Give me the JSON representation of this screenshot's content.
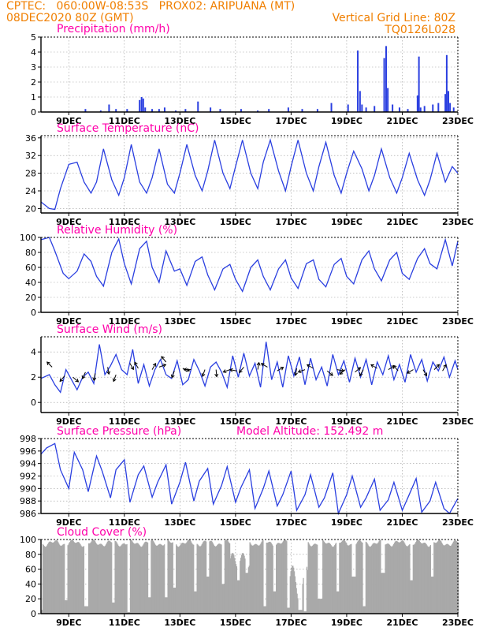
{
  "header": {
    "line1_left": "CPTEC:   060:00W-08:53S   PROX02: ARIPUANA (MT)",
    "line2_left": "08DEC2020 80Z (GMT)",
    "line2_right": "Vertical Grid Line: 80Z",
    "line3_right": "TQ0126L028"
  },
  "colors": {
    "header": "#f07f00",
    "title": "#ff00aa",
    "series": "#2a3fe0",
    "cloud": "#a9a9a9",
    "wind_arrow": "#000000"
  },
  "x_axis_ticks": [
    "9DEC",
    "11DEC",
    "13DEC",
    "15DEC",
    "17DEC",
    "19DEC",
    "21DEC",
    "23DEC"
  ],
  "chart_data": [
    {
      "type": "bar",
      "title": "Precipitation (mm/h)",
      "ylim": [
        0,
        5
      ],
      "yticks": [
        0,
        1,
        2,
        3,
        4,
        5
      ],
      "x_unit": "days since 8DEC 00Z",
      "x_range": [
        8.0,
        23.0
      ],
      "bars": [
        [
          9.6,
          0.2
        ],
        [
          10.15,
          0.1
        ],
        [
          10.45,
          0.5
        ],
        [
          10.7,
          0.2
        ],
        [
          11.1,
          0.2
        ],
        [
          11.55,
          0.8
        ],
        [
          11.62,
          1.0
        ],
        [
          11.68,
          0.9
        ],
        [
          11.75,
          0.3
        ],
        [
          12.0,
          0.2
        ],
        [
          12.25,
          0.2
        ],
        [
          12.45,
          0.3
        ],
        [
          12.85,
          0.1
        ],
        [
          13.2,
          0.2
        ],
        [
          13.65,
          0.7
        ],
        [
          14.1,
          0.3
        ],
        [
          14.45,
          0.2
        ],
        [
          15.2,
          0.2
        ],
        [
          15.8,
          0.1
        ],
        [
          16.2,
          0.2
        ],
        [
          16.9,
          0.3
        ],
        [
          17.4,
          0.2
        ],
        [
          17.95,
          0.2
        ],
        [
          18.45,
          0.6
        ],
        [
          19.05,
          0.5
        ],
        [
          19.4,
          4.1
        ],
        [
          19.48,
          1.4
        ],
        [
          19.55,
          0.5
        ],
        [
          19.7,
          0.3
        ],
        [
          20.0,
          0.4
        ],
        [
          20.35,
          3.6
        ],
        [
          20.42,
          4.4
        ],
        [
          20.48,
          1.6
        ],
        [
          20.65,
          0.5
        ],
        [
          20.9,
          0.3
        ],
        [
          21.2,
          0.2
        ],
        [
          21.55,
          1.1
        ],
        [
          21.6,
          3.7
        ],
        [
          21.66,
          0.3
        ],
        [
          21.8,
          0.4
        ],
        [
          22.1,
          0.5
        ],
        [
          22.3,
          0.6
        ],
        [
          22.55,
          1.2
        ],
        [
          22.6,
          3.8
        ],
        [
          22.66,
          1.4
        ],
        [
          22.72,
          0.6
        ],
        [
          22.85,
          0.3
        ]
      ]
    },
    {
      "type": "line",
      "title": "Surface Temperature (nC)",
      "ylim": [
        19,
        36.5
      ],
      "yticks": [
        20,
        24,
        28,
        32,
        36
      ],
      "x_unit": "days since 8DEC 00Z",
      "x_range": [
        8.0,
        23.0
      ],
      "x": [
        8.0,
        8.3,
        8.5,
        8.7,
        9.0,
        9.3,
        9.55,
        9.8,
        10.0,
        10.25,
        10.55,
        10.8,
        11.0,
        11.25,
        11.55,
        11.8,
        12.0,
        12.25,
        12.55,
        12.8,
        13.0,
        13.25,
        13.55,
        13.8,
        14.0,
        14.25,
        14.55,
        14.8,
        15.0,
        15.25,
        15.55,
        15.8,
        16.0,
        16.25,
        16.55,
        16.8,
        17.0,
        17.25,
        17.55,
        17.8,
        18.0,
        18.25,
        18.55,
        18.8,
        19.0,
        19.25,
        19.55,
        19.8,
        20.0,
        20.25,
        20.55,
        20.8,
        21.0,
        21.25,
        21.55,
        21.8,
        22.0,
        22.25,
        22.55,
        22.8,
        23.0
      ],
      "y": [
        21.5,
        20.0,
        19.8,
        24.5,
        30.0,
        30.5,
        26.0,
        23.5,
        26.0,
        33.5,
        26.5,
        23.0,
        27.0,
        34.5,
        26.0,
        23.5,
        27.0,
        33.5,
        25.5,
        23.5,
        28.0,
        34.5,
        27.5,
        24.0,
        28.5,
        35.5,
        28.0,
        24.5,
        29.5,
        35.5,
        28.0,
        24.5,
        30.5,
        35.5,
        28.5,
        24.0,
        29.5,
        35.5,
        28.0,
        24.0,
        29.5,
        35.0,
        27.5,
        23.5,
        28.0,
        33.0,
        29.0,
        24.0,
        27.5,
        33.5,
        27.0,
        23.5,
        27.0,
        32.5,
        26.5,
        23.0,
        26.5,
        32.5,
        26.0,
        29.5,
        28.0
      ]
    },
    {
      "type": "line",
      "title": "Relative Humidity (%)",
      "ylim": [
        0,
        100
      ],
      "yticks": [
        0,
        20,
        40,
        60,
        80,
        100
      ],
      "x_unit": "days since 8DEC 00Z",
      "x_range": [
        8.0,
        23.0
      ],
      "x": [
        8.0,
        8.3,
        8.5,
        8.8,
        9.0,
        9.3,
        9.55,
        9.8,
        10.0,
        10.25,
        10.55,
        10.8,
        11.0,
        11.25,
        11.55,
        11.8,
        12.0,
        12.25,
        12.5,
        12.8,
        13.0,
        13.25,
        13.55,
        13.8,
        14.0,
        14.25,
        14.55,
        14.8,
        15.0,
        15.25,
        15.55,
        15.8,
        16.0,
        16.25,
        16.55,
        16.8,
        17.0,
        17.25,
        17.55,
        17.8,
        18.0,
        18.25,
        18.55,
        18.8,
        19.0,
        19.25,
        19.55,
        19.8,
        20.0,
        20.25,
        20.55,
        20.8,
        21.0,
        21.25,
        21.55,
        21.8,
        22.0,
        22.25,
        22.55,
        22.8,
        23.0
      ],
      "y": [
        97,
        100,
        82,
        52,
        45,
        55,
        78,
        68,
        48,
        35,
        80,
        98,
        65,
        38,
        85,
        95,
        60,
        40,
        82,
        55,
        58,
        36,
        68,
        74,
        50,
        30,
        58,
        64,
        44,
        28,
        60,
        70,
        48,
        30,
        58,
        70,
        46,
        32,
        65,
        70,
        44,
        34,
        64,
        72,
        48,
        38,
        70,
        82,
        58,
        42,
        70,
        80,
        52,
        44,
        72,
        85,
        65,
        58,
        97,
        62,
        95
      ]
    },
    {
      "type": "line",
      "title": "Surface Wind (m/s)",
      "ylim": [
        -0.8,
        5.2
      ],
      "yticks": [
        0,
        2,
        4
      ],
      "x_unit": "days since 8DEC 00Z",
      "x_range": [
        8.0,
        23.0
      ],
      "x": [
        8.0,
        8.3,
        8.5,
        8.7,
        8.9,
        9.1,
        9.3,
        9.5,
        9.7,
        9.9,
        10.1,
        10.3,
        10.5,
        10.7,
        10.9,
        11.1,
        11.3,
        11.5,
        11.7,
        11.9,
        12.1,
        12.3,
        12.5,
        12.7,
        12.9,
        13.1,
        13.3,
        13.5,
        13.7,
        13.9,
        14.1,
        14.3,
        14.5,
        14.7,
        14.9,
        15.1,
        15.3,
        15.5,
        15.7,
        15.9,
        16.1,
        16.3,
        16.5,
        16.7,
        16.9,
        17.1,
        17.3,
        17.5,
        17.7,
        17.9,
        18.1,
        18.3,
        18.5,
        18.7,
        18.9,
        19.1,
        19.3,
        19.5,
        19.7,
        19.9,
        20.1,
        20.3,
        20.5,
        20.7,
        20.9,
        21.1,
        21.3,
        21.5,
        21.7,
        21.9,
        22.1,
        22.3,
        22.5,
        22.7,
        22.9,
        23.0
      ],
      "y": [
        1.9,
        2.2,
        1.4,
        0.8,
        2.6,
        1.8,
        1.0,
        2.0,
        2.4,
        1.5,
        4.6,
        2.2,
        2.9,
        3.8,
        2.6,
        2.2,
        4.2,
        1.5,
        3.0,
        1.3,
        2.6,
        3.4,
        2.2,
        1.9,
        3.3,
        1.4,
        1.8,
        3.4,
        2.5,
        1.3,
        2.8,
        3.2,
        2.4,
        1.2,
        3.7,
        2.0,
        3.9,
        2.1,
        3.1,
        1.2,
        4.8,
        1.8,
        3.2,
        1.2,
        3.7,
        2.1,
        3.6,
        1.4,
        3.5,
        1.8,
        2.8,
        1.3,
        3.8,
        2.2,
        3.3,
        1.6,
        3.5,
        2.0,
        3.4,
        1.4,
        3.2,
        2.2,
        3.7,
        1.8,
        3.0,
        1.6,
        3.8,
        2.4,
        3.4,
        1.7,
        3.2,
        2.5,
        3.6,
        2.0,
        3.3,
        2.6
      ],
      "wind_vectors": [
        [
          8.4,
          2.8,
          135
        ],
        [
          8.85,
          2.1,
          230
        ],
        [
          9.15,
          2.0,
          320
        ],
        [
          9.6,
          2.4,
          245
        ],
        [
          9.95,
          2.3,
          260
        ],
        [
          10.4,
          2.8,
          280
        ],
        [
          10.7,
          2.2,
          250
        ],
        [
          11.2,
          3.1,
          300
        ],
        [
          11.5,
          2.7,
          120
        ],
        [
          12.0,
          2.6,
          60
        ],
        [
          12.25,
          2.8,
          20
        ],
        [
          12.5,
          3.2,
          130
        ],
        [
          12.8,
          2.5,
          250
        ],
        [
          13.1,
          2.7,
          340
        ],
        [
          13.4,
          2.6,
          180
        ],
        [
          13.9,
          2.6,
          250
        ],
        [
          14.3,
          2.6,
          275
        ],
        [
          14.8,
          2.6,
          200
        ],
        [
          15.05,
          2.5,
          170
        ],
        [
          15.3,
          2.8,
          230
        ],
        [
          15.8,
          2.6,
          80
        ],
        [
          16.15,
          2.8,
          150
        ],
        [
          16.5,
          2.5,
          30
        ],
        [
          17.2,
          2.7,
          260
        ],
        [
          17.5,
          2.6,
          200
        ],
        [
          17.8,
          2.7,
          150
        ],
        [
          18.3,
          2.5,
          320
        ],
        [
          18.65,
          2.6,
          350
        ],
        [
          18.95,
          2.6,
          220
        ],
        [
          19.3,
          2.4,
          40
        ],
        [
          19.6,
          2.6,
          240
        ],
        [
          20.1,
          2.7,
          150
        ],
        [
          20.5,
          2.6,
          30
        ],
        [
          20.85,
          2.5,
          130
        ],
        [
          21.4,
          2.6,
          210
        ],
        [
          21.75,
          2.6,
          300
        ],
        [
          22.15,
          2.6,
          45
        ],
        [
          22.45,
          2.5,
          60
        ]
      ]
    },
    {
      "type": "line",
      "title": "Surface Pressure (hPa)",
      "subtitle": "Model Altitude:  152.492  m",
      "ylim": [
        986,
        998
      ],
      "yticks": [
        986,
        988,
        990,
        992,
        994,
        996,
        998
      ],
      "x_unit": "days since 8DEC 00Z",
      "x_range": [
        8.0,
        23.0
      ],
      "x": [
        8.0,
        8.2,
        8.5,
        8.7,
        9.0,
        9.2,
        9.5,
        9.7,
        10.0,
        10.2,
        10.5,
        10.7,
        11.0,
        11.2,
        11.5,
        11.7,
        12.0,
        12.2,
        12.5,
        12.7,
        13.0,
        13.2,
        13.5,
        13.7,
        14.0,
        14.2,
        14.5,
        14.7,
        15.0,
        15.2,
        15.5,
        15.7,
        16.0,
        16.2,
        16.5,
        16.7,
        17.0,
        17.2,
        17.5,
        17.7,
        18.0,
        18.2,
        18.5,
        18.7,
        19.0,
        19.2,
        19.5,
        19.7,
        20.0,
        20.2,
        20.5,
        20.7,
        21.0,
        21.2,
        21.5,
        21.7,
        22.0,
        22.2,
        22.5,
        22.7,
        23.0
      ],
      "y": [
        995.5,
        996.5,
        997.2,
        993.0,
        990.0,
        995.8,
        993.0,
        989.5,
        995.2,
        992.8,
        988.5,
        993.0,
        994.6,
        987.8,
        992.2,
        993.6,
        988.6,
        991.0,
        993.8,
        987.5,
        991.0,
        994.2,
        988.0,
        991.2,
        993.2,
        987.5,
        990.5,
        993.5,
        987.8,
        990.2,
        993.0,
        986.8,
        990.0,
        992.8,
        987.2,
        989.0,
        992.8,
        986.5,
        989.0,
        992.2,
        987.0,
        988.5,
        992.5,
        986.0,
        989.0,
        992.0,
        987.0,
        988.5,
        991.5,
        986.5,
        988.2,
        991.0,
        986.5,
        988.5,
        991.6,
        986.2,
        988.0,
        991.0,
        986.8,
        986.0,
        988.4
      ]
    },
    {
      "type": "bar",
      "title": "Cloud Cover (%)",
      "ylim": [
        0,
        100
      ],
      "yticks": [
        0,
        20,
        40,
        60,
        80,
        100
      ],
      "x_unit": "days since 8DEC 00Z",
      "x_range": [
        8.0,
        23.0
      ],
      "gaps": [
        [
          8.0,
          8.05,
          5
        ],
        [
          8.85,
          8.95,
          18
        ],
        [
          9.55,
          9.7,
          10
        ],
        [
          10.55,
          10.65,
          15
        ],
        [
          11.1,
          11.2,
          2
        ],
        [
          11.85,
          11.95,
          22
        ],
        [
          12.45,
          12.55,
          22
        ],
        [
          12.75,
          12.85,
          35
        ],
        [
          13.5,
          13.6,
          30
        ],
        [
          13.95,
          14.05,
          50
        ],
        [
          14.5,
          14.6,
          40
        ],
        [
          15.05,
          15.15,
          45
        ],
        [
          15.35,
          15.45,
          55
        ],
        [
          16.0,
          16.1,
          10
        ],
        [
          16.35,
          16.45,
          30
        ],
        [
          16.85,
          16.95,
          8
        ],
        [
          17.25,
          17.4,
          5
        ],
        [
          17.45,
          17.55,
          3
        ],
        [
          17.95,
          18.1,
          20
        ],
        [
          18.6,
          18.7,
          30
        ],
        [
          19.15,
          19.3,
          50
        ],
        [
          19.55,
          19.65,
          10
        ],
        [
          20.2,
          20.35,
          55
        ],
        [
          21.25,
          21.35,
          45
        ],
        [
          22.0,
          22.1,
          50
        ]
      ],
      "base_value": 95
    }
  ]
}
